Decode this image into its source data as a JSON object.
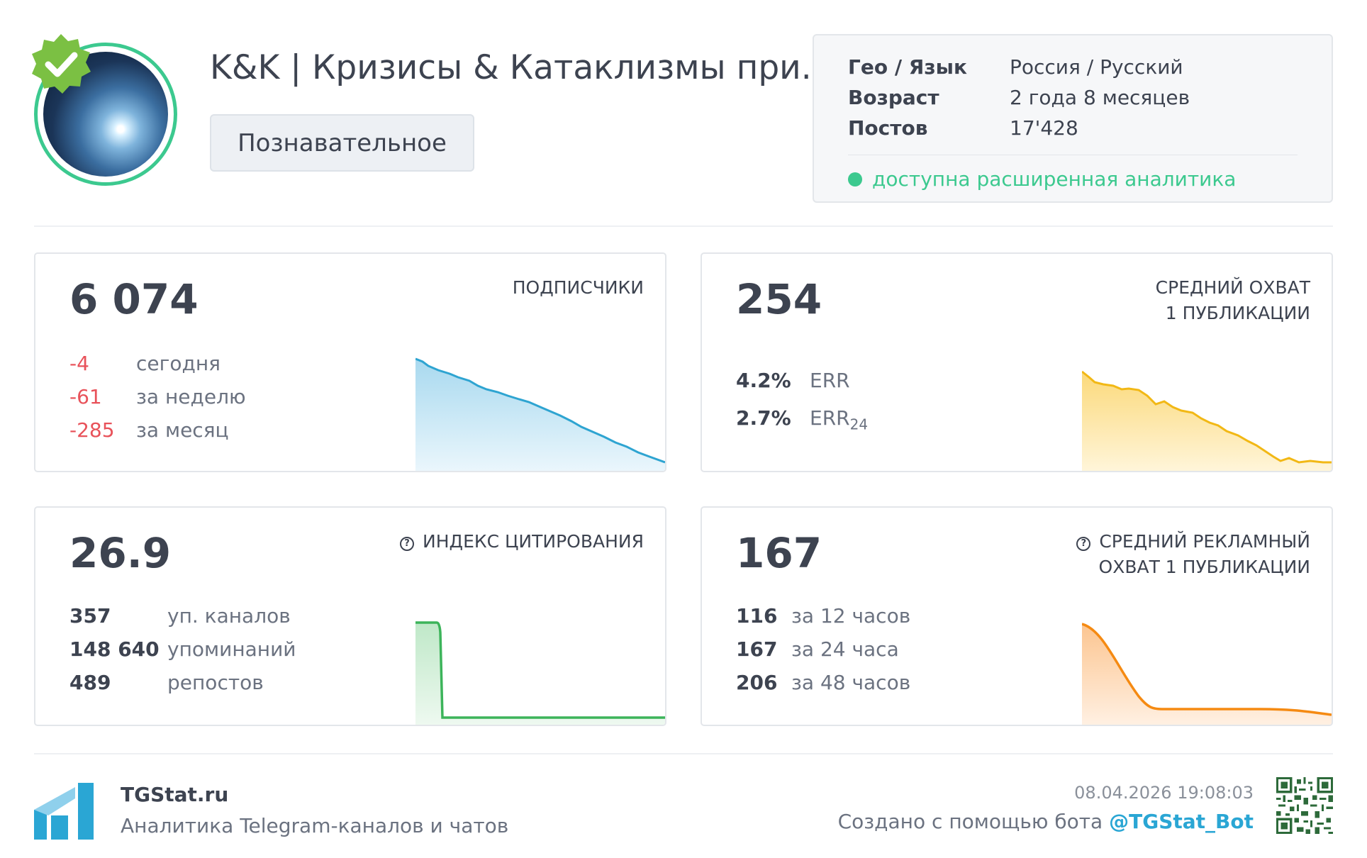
{
  "channel": {
    "title": "K&K | Кризисы & Катаклизмы при...",
    "category": "Познавательное"
  },
  "info": {
    "rows": [
      {
        "key": "Гео / Язык",
        "value": "Россия / Русский"
      },
      {
        "key": "Возраст",
        "value": "2 года 8 месяцев"
      },
      {
        "key": "Постов",
        "value": "17'428"
      }
    ],
    "analytics": "доступна расширенная аналитика"
  },
  "cards": {
    "subscribers": {
      "value": "6 074",
      "label": "ПОДПИСЧИКИ",
      "stats": [
        {
          "num": "-4",
          "text": "сегодня"
        },
        {
          "num": "-61",
          "text": "за неделю"
        },
        {
          "num": "-285",
          "text": "за месяц"
        }
      ],
      "color": "#2ea4d1"
    },
    "reach": {
      "value": "254",
      "label_line1": "СРЕДНИЙ ОХВАТ",
      "label_line2": "1 ПУБЛИКАЦИИ",
      "err": "4.2%",
      "err_label": "ERR",
      "err24": "2.7%",
      "err24_label": "ERR",
      "err24_sub": "24",
      "color": "#f2b815"
    },
    "citation": {
      "value": "26.9",
      "label": "ИНДЕКС ЦИТИРОВАНИЯ",
      "stats": [
        {
          "num": "357",
          "text": "уп. каналов"
        },
        {
          "num": "148 640",
          "text": "упоминаний"
        },
        {
          "num": "489",
          "text": "репостов"
        }
      ],
      "color": "#3cb45a"
    },
    "ad_reach": {
      "value": "167",
      "label_line1": "СРЕДНИЙ РЕКЛАМНЫЙ",
      "label_line2": "ОХВАТ 1 ПУБЛИКАЦИИ",
      "stats": [
        {
          "num": "116",
          "text": "за 12 часов"
        },
        {
          "num": "167",
          "text": "за 24 часа"
        },
        {
          "num": "206",
          "text": "за 48 часов"
        }
      ],
      "color": "#f58a12"
    }
  },
  "footer": {
    "brand": "TGStat.ru",
    "tagline": "Аналитика Telegram-каналов и чатов",
    "timestamp": "08.04.2026 19:08:03",
    "made_by": "Создано с помощью бота",
    "bot": "@TGStat_Bot"
  },
  "icons": {
    "verified": "verified-badge-icon",
    "question": "question-circle-icon",
    "logo": "tgstat-logo-icon",
    "qr": "qr-code-icon"
  }
}
